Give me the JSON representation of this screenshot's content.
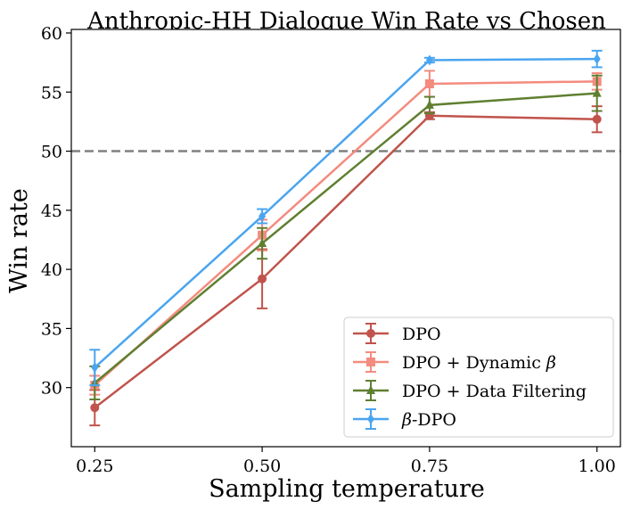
{
  "chart_data": {
    "type": "line",
    "title": "Anthropic-HH Dialogue Win Rate vs Chosen",
    "xlabel": "Sampling temperature",
    "ylabel": "Win rate",
    "x": [
      0.25,
      0.5,
      0.75,
      1.0
    ],
    "x_tick_labels": [
      "0.25",
      "0.50",
      "0.75",
      "1.00"
    ],
    "y_ticks": [
      30,
      35,
      40,
      45,
      50,
      55,
      60
    ],
    "xlim": [
      0.215,
      1.035
    ],
    "ylim": [
      25,
      60.3
    ],
    "reference_line": {
      "y": 50,
      "style": "dashed",
      "color": "#808080"
    },
    "legend_position": "lower-right",
    "grid": false,
    "series": [
      {
        "name": "DPO",
        "label_text": "DPO",
        "color": "#c0544c",
        "marker": "circle",
        "values": [
          28.3,
          39.2,
          53.0,
          52.7
        ],
        "errors": [
          1.5,
          2.5,
          0.3,
          1.1
        ]
      },
      {
        "name": "DPO + Dynamic β",
        "label_text": "DPO + Dynamic ",
        "label_symbol": "β",
        "color": "#f48b7f",
        "marker": "square",
        "values": [
          30.2,
          42.9,
          55.7,
          55.9
        ],
        "errors": [
          0.8,
          1.3,
          1.1,
          0.7
        ]
      },
      {
        "name": "DPO + Data Filtering",
        "label_text": "DPO + Data Filtering",
        "color": "#5f7f30",
        "marker": "triangle",
        "values": [
          30.4,
          42.2,
          53.9,
          54.9
        ],
        "errors": [
          1.4,
          1.3,
          0.7,
          1.5
        ]
      },
      {
        "name": "β-DPO",
        "label_symbol": "β",
        "label_text": "-DPO",
        "color": "#4aa5f0",
        "marker": "diamond",
        "values": [
          31.7,
          44.5,
          57.7,
          57.8
        ],
        "errors": [
          1.5,
          0.6,
          0.2,
          0.7
        ]
      }
    ]
  }
}
